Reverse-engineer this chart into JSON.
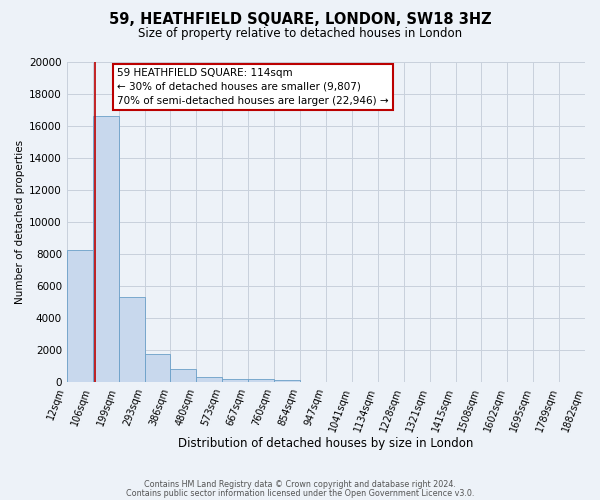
{
  "title": "59, HEATHFIELD SQUARE, LONDON, SW18 3HZ",
  "subtitle": "Size of property relative to detached houses in London",
  "xlabel": "Distribution of detached houses by size in London",
  "ylabel": "Number of detached properties",
  "bin_edges": [
    12,
    106,
    199,
    293,
    386,
    480,
    573,
    667,
    760,
    854,
    947,
    1041,
    1134,
    1228,
    1321,
    1415,
    1508,
    1602,
    1695,
    1789,
    1882
  ],
  "bin_labels": [
    "12sqm",
    "106sqm",
    "199sqm",
    "293sqm",
    "386sqm",
    "480sqm",
    "573sqm",
    "667sqm",
    "760sqm",
    "854sqm",
    "947sqm",
    "1041sqm",
    "1134sqm",
    "1228sqm",
    "1321sqm",
    "1415sqm",
    "1508sqm",
    "1602sqm",
    "1695sqm",
    "1789sqm",
    "1882sqm"
  ],
  "counts": [
    8200,
    16600,
    5300,
    1750,
    800,
    300,
    200,
    150,
    100,
    0,
    0,
    0,
    0,
    0,
    0,
    0,
    0,
    0,
    0,
    0
  ],
  "bar_color": "#c8d8ed",
  "bar_edge_color": "#6a9fc8",
  "grid_color": "#c8d0dc",
  "bg_color": "#edf2f8",
  "redline_x": 114,
  "redline_color": "#bb0000",
  "annotation_line1": "59 HEATHFIELD SQUARE: 114sqm",
  "annotation_line2": "← 30% of detached houses are smaller (9,807)",
  "annotation_line3": "70% of semi-detached houses are larger (22,946) →",
  "footer1": "Contains HM Land Registry data © Crown copyright and database right 2024.",
  "footer2": "Contains public sector information licensed under the Open Government Licence v3.0.",
  "ylim": [
    0,
    20000
  ],
  "yticks": [
    0,
    2000,
    4000,
    6000,
    8000,
    10000,
    12000,
    14000,
    16000,
    18000,
    20000
  ]
}
